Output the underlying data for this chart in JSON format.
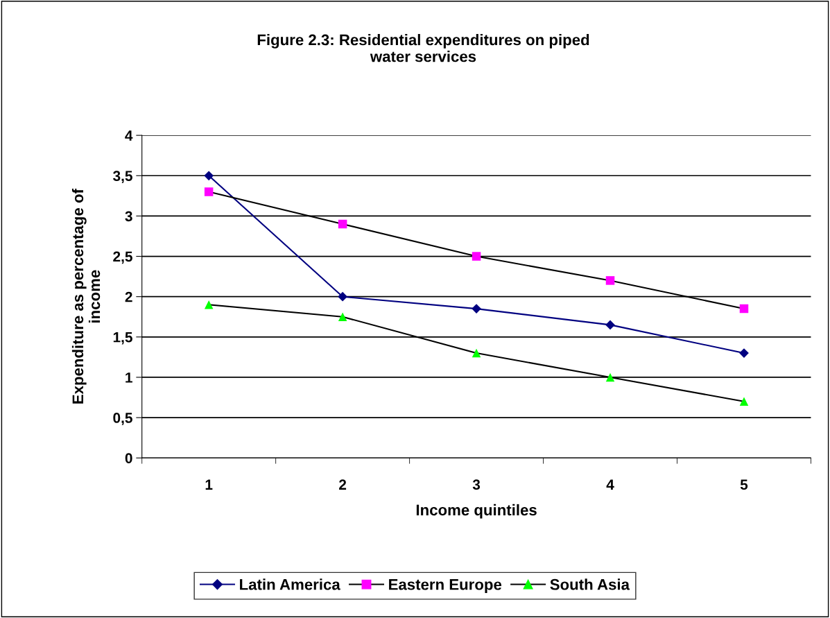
{
  "chart_data": {
    "type": "line",
    "title": "Figure 2.3: Residential expenditures on piped\nwater services",
    "xlabel": "Income quintiles",
    "ylabel": "Expenditure as percentage of\nincome",
    "categories": [
      "1",
      "2",
      "3",
      "4",
      "5"
    ],
    "series": [
      {
        "name": "Latin America",
        "color": "#000080",
        "marker": "diamond",
        "values": [
          3.5,
          2.0,
          1.85,
          1.65,
          1.3
        ]
      },
      {
        "name": "Eastern Europe",
        "color": "#000000",
        "colors": [
          "#ff00ff",
          "#ff00ff",
          "#ff00ff",
          "#ff00ff",
          "#ff00ff"
        ],
        "marker": "square",
        "values": [
          3.3,
          2.9,
          2.5,
          2.2,
          1.85
        ]
      },
      {
        "name": "South Asia",
        "color": "#000000",
        "colors": [
          "#00ff00",
          "#00ff00",
          "#00ff00",
          "#00ff00",
          "#00ff00"
        ],
        "marker": "triangle",
        "values": [
          1.9,
          1.75,
          1.3,
          1.0,
          0.7
        ]
      }
    ],
    "ylim": [
      0,
      4
    ],
    "yticks": [
      0,
      {
        "value": 0.5,
        "label": "0,5"
      },
      1,
      {
        "value": 1.5,
        "label": "1,5"
      },
      2,
      {
        "value": 2.5,
        "label": "2,5"
      },
      3,
      {
        "value": 3.5,
        "label": "3,5"
      },
      4
    ],
    "grid": "y",
    "legend": "bottom",
    "line_style": "solid"
  }
}
